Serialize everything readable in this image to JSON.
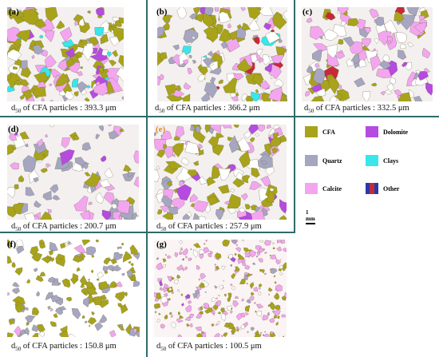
{
  "panels": [
    {
      "label": "(a)",
      "caption_prefix": "d",
      "caption_sub": "50",
      "caption_text": " of CFA particles : 393.3 μm"
    },
    {
      "label": "(b)",
      "caption_prefix": "d",
      "caption_sub": "50",
      "caption_text": " of CFA particles : 366.2 μm"
    },
    {
      "label": "(c)",
      "caption_prefix": "d",
      "caption_sub": "50",
      "caption_text": " of CFA particles : 332.5 μm"
    },
    {
      "label": "(d)",
      "caption_prefix": "d",
      "caption_sub": "50",
      "caption_text": " of CFA particles : 200.7 μm"
    },
    {
      "label": "(e)",
      "caption_prefix": "d",
      "caption_sub": "50",
      "caption_text": " of CFA particles : 257.9 μm"
    },
    {
      "label": "(f)",
      "caption_prefix": "d",
      "caption_sub": "50",
      "caption_text": " of CFA particles : 150.8 μm"
    },
    {
      "label": "(g)",
      "caption_prefix": "d",
      "caption_sub": "50",
      "caption_text": " of CFA particles : 100.5 μm"
    }
  ],
  "legend": {
    "items": [
      {
        "label": "CFA",
        "color": "#a8a31a"
      },
      {
        "label": "Dolomite",
        "color": "#b54be0"
      },
      {
        "label": "Quartz",
        "color": "#a6a6c2"
      },
      {
        "label": "Clays",
        "color": "#38e6ec"
      },
      {
        "label": "Calcite",
        "color": "#f3a6ef"
      },
      {
        "label": "Other",
        "colors": [
          "#2a3aa8",
          "#c8283a",
          "#2a3aa8"
        ]
      }
    ],
    "scale_label": "1 mm"
  },
  "colors": {
    "background": "#f3f0ef",
    "divider": "#2f6b6b",
    "cfa": "#a8a31a",
    "quartz": "#a6a6c2",
    "calcite": "#f3a6ef",
    "dolomite": "#b54be0",
    "clays": "#38e6ec",
    "other_blue": "#2a3aa8",
    "other_red": "#c8283a",
    "orange_label": "#e08b2a"
  }
}
